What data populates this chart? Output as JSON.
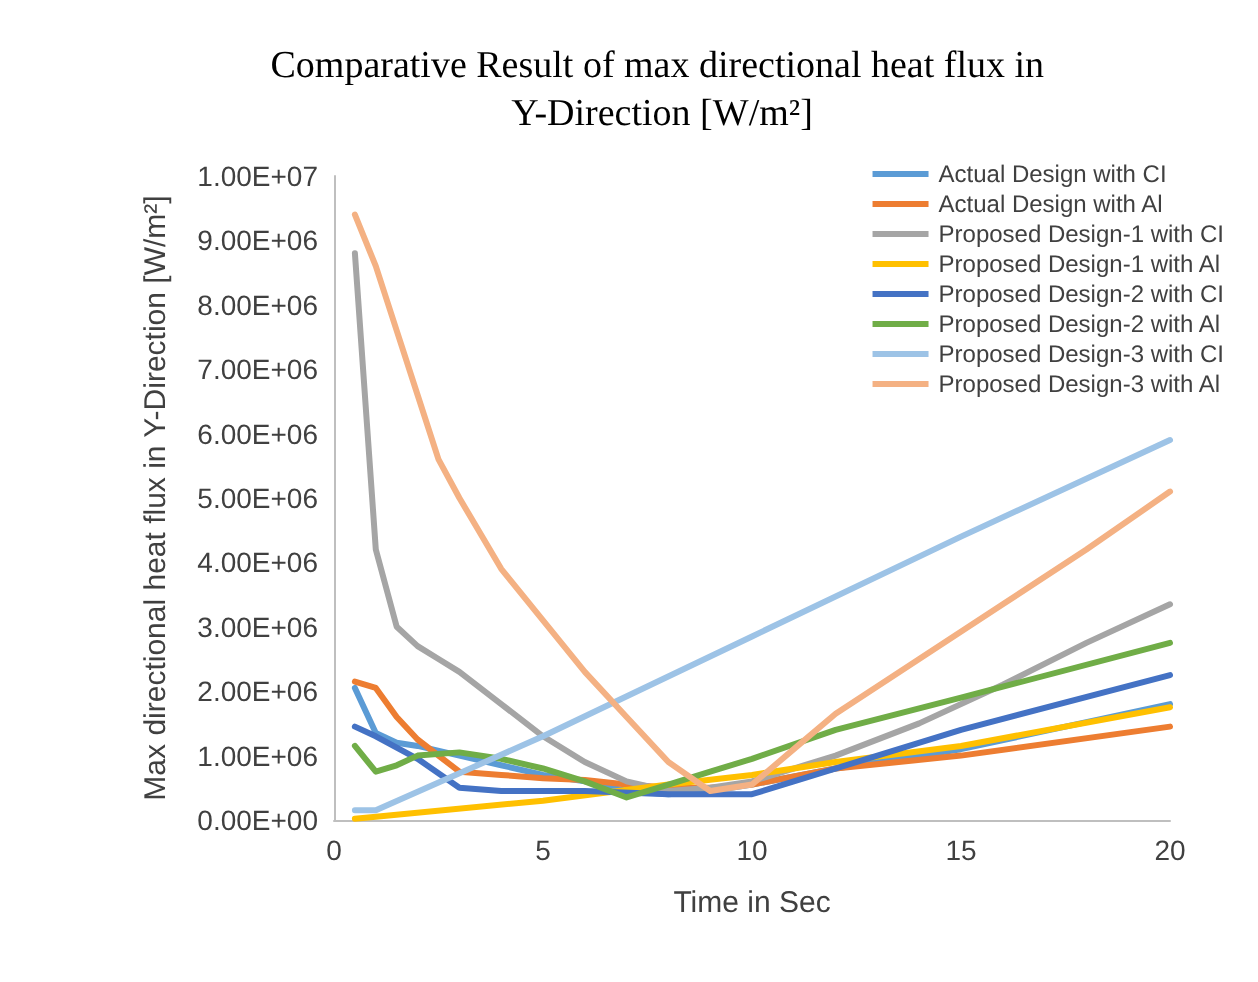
{
  "chart_data": {
    "type": "line",
    "title": "Comparative Result of max directional heat flux in Y-Direction [W/m²]",
    "xlabel": "Time in Sec",
    "ylabel": "Max directional heat flux in Y-Direction [W/m²]",
    "xlim": [
      0,
      20
    ],
    "xticks": [
      0,
      5,
      10,
      15,
      20
    ],
    "ylim": [
      0,
      10000000
    ],
    "yticks": [
      {
        "value": 0,
        "label": "0.00E+00"
      },
      {
        "value": 1000000,
        "label": "1.00E+06"
      },
      {
        "value": 2000000,
        "label": "2.00E+06"
      },
      {
        "value": 3000000,
        "label": "3.00E+06"
      },
      {
        "value": 4000000,
        "label": "4.00E+06"
      },
      {
        "value": 5000000,
        "label": "5.00E+06"
      },
      {
        "value": 6000000,
        "label": "6.00E+06"
      },
      {
        "value": 7000000,
        "label": "7.00E+06"
      },
      {
        "value": 8000000,
        "label": "8.00E+06"
      },
      {
        "value": 9000000,
        "label": "9.00E+06"
      },
      {
        "value": 10000000,
        "label": "1.00E+07"
      }
    ],
    "grid": false,
    "legend": "right",
    "marker": "none",
    "line_style": "solid",
    "series": [
      {
        "name": "Actual Design with CI",
        "color": "#5b9bd5",
        "x": [
          0.5,
          1,
          1.5,
          2,
          3,
          4,
          5,
          6,
          7,
          8,
          9,
          10,
          12,
          15,
          20
        ],
        "values": [
          2050000,
          1350000,
          1200000,
          1150000,
          1000000,
          850000,
          700000,
          600000,
          450000,
          400000,
          450000,
          550000,
          800000,
          1100000,
          1800000
        ]
      },
      {
        "name": "Actual Design with Al",
        "color": "#ed7d31",
        "x": [
          0.5,
          1,
          1.5,
          2,
          3,
          4,
          5,
          6,
          7,
          8,
          9,
          10,
          12,
          15,
          20
        ],
        "values": [
          2150000,
          2050000,
          1600000,
          1250000,
          750000,
          700000,
          650000,
          620000,
          550000,
          500000,
          500000,
          550000,
          800000,
          1000000,
          1450000
        ]
      },
      {
        "name": "Proposed Design-1 with CI",
        "color": "#a5a5a5",
        "x": [
          0.5,
          1,
          1.5,
          2,
          2.5,
          3,
          4,
          5,
          6,
          7,
          8,
          9,
          10,
          12,
          14,
          16,
          18,
          20
        ],
        "values": [
          8800000,
          4200000,
          3000000,
          2700000,
          2500000,
          2300000,
          1800000,
          1300000,
          900000,
          600000,
          450000,
          500000,
          600000,
          1000000,
          1500000,
          2100000,
          2750000,
          3350000
        ]
      },
      {
        "name": "Proposed Design-1 with Al",
        "color": "#ffc000",
        "x": [
          0.5,
          1,
          5,
          8,
          10,
          12,
          15,
          20
        ],
        "values": [
          20000,
          50000,
          300000,
          550000,
          700000,
          900000,
          1150000,
          1750000
        ]
      },
      {
        "name": "Proposed Design-2 with CI",
        "color": "#4472c4",
        "x": [
          0.5,
          1,
          2,
          3,
          4,
          6,
          8,
          9,
          10,
          11,
          13,
          15,
          20
        ],
        "values": [
          1450000,
          1300000,
          950000,
          500000,
          450000,
          450000,
          400000,
          400000,
          400000,
          600000,
          1000000,
          1400000,
          2250000
        ]
      },
      {
        "name": "Proposed Design-2 with Al",
        "color": "#70ad47",
        "x": [
          0.5,
          1,
          1.5,
          2,
          3,
          4,
          5,
          6,
          7,
          8,
          9,
          10,
          12,
          15,
          20
        ],
        "values": [
          1150000,
          750000,
          850000,
          1000000,
          1050000,
          950000,
          800000,
          600000,
          350000,
          550000,
          750000,
          950000,
          1400000,
          1900000,
          2750000
        ]
      },
      {
        "name": "Proposed Design-3 with CI",
        "color": "#9dc3e6",
        "x": [
          0.5,
          1,
          5,
          10,
          15,
          20
        ],
        "values": [
          150000,
          150000,
          1300000,
          2850000,
          4400000,
          5900000
        ]
      },
      {
        "name": "Proposed Design-3 with Al",
        "color": "#f4b183",
        "x": [
          0.5,
          1,
          1.5,
          2,
          2.5,
          3,
          4,
          5,
          6,
          7,
          8,
          9,
          10,
          11,
          12,
          14,
          16,
          18,
          20
        ],
        "values": [
          9400000,
          8600000,
          7600000,
          6600000,
          5600000,
          5000000,
          3900000,
          3100000,
          2300000,
          1600000,
          900000,
          450000,
          550000,
          1100000,
          1650000,
          2500000,
          3350000,
          4200000,
          5100000
        ]
      }
    ]
  }
}
